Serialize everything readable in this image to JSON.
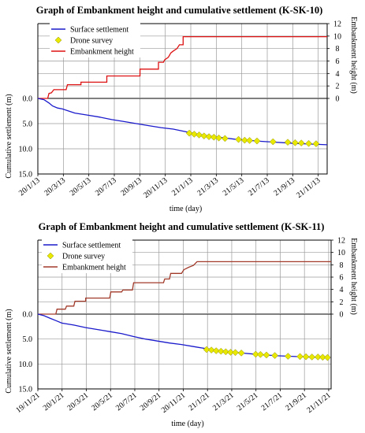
{
  "chart_data": [
    {
      "type": "line",
      "title": "Graph of Embankment height and cumulative settlement (K-SK-10)",
      "xlabel": "time (day)",
      "ylabel_left": "Cumulative settlement (m)",
      "ylabel_right": "Embankment height (m)",
      "x_tick_labels": [
        "20/1/13",
        "20/3/13",
        "20/5/13",
        "20/7/13",
        "20/9/13",
        "20/11/13",
        "21/1/13",
        "21/3/13",
        "21/5/13",
        "21/7/13",
        "21/9/13",
        "21/11/13"
      ],
      "y_left_ticks": [
        "0.0",
        "5.0",
        "10.0",
        "15.0"
      ],
      "y_right_ticks": [
        "0",
        "2",
        "4",
        "6",
        "8",
        "10",
        "12"
      ],
      "ylim_left": [
        0,
        15
      ],
      "ylim_right": [
        0,
        12
      ],
      "grid": true,
      "legend_position": "top-left",
      "legend": [
        {
          "name": "Surface settlement",
          "color": "#1a1acc",
          "marker": "line"
        },
        {
          "name": "Drone survey",
          "color": "#e8e800",
          "marker": "diamond"
        },
        {
          "name": "Embankment height",
          "color": "#dd1111",
          "marker": "line"
        }
      ],
      "x_range_months": [
        0,
        23.5
      ],
      "series": [
        {
          "name": "Embankment height",
          "axis": "right",
          "color": "#dd1111",
          "step": true,
          "points": [
            [
              0,
              0
            ],
            [
              0.8,
              0
            ],
            [
              0.9,
              0.8
            ],
            [
              1.1,
              0.9
            ],
            [
              1.3,
              1.4
            ],
            [
              2.3,
              1.4
            ],
            [
              2.4,
              2.2
            ],
            [
              3.5,
              2.2
            ],
            [
              3.5,
              2.6
            ],
            [
              5.6,
              2.6
            ],
            [
              5.6,
              3.6
            ],
            [
              8.3,
              3.6
            ],
            [
              8.3,
              4.7
            ],
            [
              9.8,
              4.7
            ],
            [
              9.8,
              5.8
            ],
            [
              10.2,
              5.8
            ],
            [
              10.3,
              6.2
            ],
            [
              10.6,
              6.6
            ],
            [
              10.8,
              7.3
            ],
            [
              11.0,
              7.6
            ],
            [
              11.3,
              8.0
            ],
            [
              11.5,
              8.6
            ],
            [
              11.8,
              8.6
            ],
            [
              11.8,
              9.9
            ],
            [
              12.2,
              9.9
            ],
            [
              23.5,
              9.9
            ]
          ]
        },
        {
          "name": "Surface settlement",
          "axis": "left",
          "color": "#1a1acc",
          "points": [
            [
              0,
              0
            ],
            [
              0.5,
              0.25
            ],
            [
              0.9,
              0.9
            ],
            [
              1.2,
              1.5
            ],
            [
              1.6,
              1.9
            ],
            [
              2.0,
              2.1
            ],
            [
              2.5,
              2.5
            ],
            [
              3.0,
              2.9
            ],
            [
              4.0,
              3.3
            ],
            [
              5.0,
              3.7
            ],
            [
              6.0,
              4.2
            ],
            [
              7.0,
              4.6
            ],
            [
              8.0,
              5.0
            ],
            [
              9.0,
              5.4
            ],
            [
              10.0,
              5.8
            ],
            [
              11.0,
              6.1
            ],
            [
              12.0,
              6.6
            ],
            [
              13.0,
              7.1
            ],
            [
              14.0,
              7.5
            ],
            [
              15.0,
              7.8
            ],
            [
              16.0,
              8.1
            ],
            [
              17.0,
              8.3
            ],
            [
              18.0,
              8.5
            ],
            [
              19.0,
              8.65
            ],
            [
              20.0,
              8.8
            ],
            [
              21.0,
              8.95
            ],
            [
              22.0,
              9.05
            ],
            [
              23.5,
              9.2
            ]
          ]
        },
        {
          "name": "Drone survey",
          "axis": "left",
          "color": "#e8e800",
          "marker": "diamond",
          "points": [
            [
              12.3,
              6.9
            ],
            [
              12.7,
              7.1
            ],
            [
              13.1,
              7.25
            ],
            [
              13.5,
              7.45
            ],
            [
              13.9,
              7.6
            ],
            [
              14.3,
              7.7
            ],
            [
              14.7,
              7.85
            ],
            [
              15.2,
              7.95
            ],
            [
              16.3,
              8.15
            ],
            [
              16.8,
              8.3
            ],
            [
              17.2,
              8.35
            ],
            [
              17.8,
              8.45
            ],
            [
              19.1,
              8.6
            ],
            [
              20.3,
              8.7
            ],
            [
              20.9,
              8.8
            ],
            [
              21.4,
              8.85
            ],
            [
              22.0,
              8.95
            ],
            [
              22.6,
              9.0
            ]
          ]
        }
      ]
    },
    {
      "type": "line",
      "title": "Graph of Embankment height and cumulative settlement (K-SK-11)",
      "xlabel": "time (day)",
      "ylabel_left": "Cumulative settlement (m)",
      "ylabel_right": "Embankment height (m)",
      "x_tick_labels": [
        "19/11/21",
        "20/1/21",
        "20/3/21",
        "20/5/21",
        "20/7/21",
        "20/9/21",
        "20/11/21",
        "21/1/21",
        "21/3/21",
        "21/5/21",
        "21/7/21",
        "21/9/21",
        "21/11/21"
      ],
      "y_left_ticks": [
        "0.0",
        "5.0",
        "10.0",
        "15.0"
      ],
      "y_right_ticks": [
        "0",
        "2",
        "4",
        "6",
        "8",
        "10",
        "12"
      ],
      "ylim_left": [
        0,
        15
      ],
      "ylim_right": [
        0,
        12
      ],
      "grid": true,
      "legend_position": "top-left",
      "legend": [
        {
          "name": "Surface settlement",
          "color": "#1a1acc",
          "marker": "line"
        },
        {
          "name": "Drone survey",
          "color": "#e8e800",
          "marker": "diamond"
        },
        {
          "name": "Embankment height",
          "color": "#a23a2a",
          "marker": "line"
        }
      ],
      "x_range_months": [
        0,
        24.5
      ],
      "series": [
        {
          "name": "Embankment height",
          "axis": "right",
          "color": "#a23a2a",
          "step": true,
          "points": [
            [
              0,
              0
            ],
            [
              1.5,
              0
            ],
            [
              1.6,
              0.8
            ],
            [
              2.3,
              0.8
            ],
            [
              2.4,
              1.3
            ],
            [
              3.0,
              1.3
            ],
            [
              3.1,
              2.1
            ],
            [
              4.0,
              2.1
            ],
            [
              4.0,
              2.6
            ],
            [
              6.0,
              2.6
            ],
            [
              6.1,
              3.6
            ],
            [
              7.0,
              3.6
            ],
            [
              7.1,
              3.9
            ],
            [
              7.9,
              3.9
            ],
            [
              8.0,
              5.1
            ],
            [
              10.5,
              5.1
            ],
            [
              10.6,
              5.7
            ],
            [
              11.0,
              5.7
            ],
            [
              11.1,
              6.6
            ],
            [
              12.0,
              6.6
            ],
            [
              12.2,
              7.2
            ],
            [
              12.6,
              7.6
            ],
            [
              13.0,
              7.9
            ],
            [
              13.3,
              8.5
            ],
            [
              24.5,
              8.5
            ]
          ]
        },
        {
          "name": "Surface settlement",
          "axis": "left",
          "color": "#1a1acc",
          "points": [
            [
              0,
              0
            ],
            [
              0.5,
              0.3
            ],
            [
              1.0,
              0.8
            ],
            [
              1.5,
              1.3
            ],
            [
              2.0,
              1.8
            ],
            [
              3.0,
              2.2
            ],
            [
              4.0,
              2.7
            ],
            [
              5.0,
              3.1
            ],
            [
              6.0,
              3.5
            ],
            [
              7.0,
              3.9
            ],
            [
              8.0,
              4.5
            ],
            [
              9.0,
              5.0
            ],
            [
              10.0,
              5.4
            ],
            [
              11.0,
              5.8
            ],
            [
              12.0,
              6.1
            ],
            [
              13.0,
              6.5
            ],
            [
              14.0,
              6.9
            ],
            [
              15.0,
              7.25
            ],
            [
              16.0,
              7.55
            ],
            [
              17.0,
              7.8
            ],
            [
              18.0,
              8.0
            ],
            [
              19.0,
              8.2
            ],
            [
              20.0,
              8.35
            ],
            [
              21.0,
              8.45
            ],
            [
              22.0,
              8.55
            ],
            [
              23.0,
              8.65
            ],
            [
              24.5,
              8.7
            ]
          ]
        },
        {
          "name": "Drone survey",
          "axis": "left",
          "color": "#e8e800",
          "marker": "diamond",
          "points": [
            [
              14.1,
              7.1
            ],
            [
              14.5,
              7.2
            ],
            [
              14.9,
              7.35
            ],
            [
              15.3,
              7.45
            ],
            [
              15.7,
              7.55
            ],
            [
              16.1,
              7.65
            ],
            [
              16.5,
              7.7
            ],
            [
              17.0,
              7.8
            ],
            [
              18.2,
              8.05
            ],
            [
              18.6,
              8.1
            ],
            [
              19.1,
              8.2
            ],
            [
              19.8,
              8.3
            ],
            [
              20.9,
              8.45
            ],
            [
              21.9,
              8.5
            ],
            [
              22.4,
              8.55
            ],
            [
              22.9,
              8.6
            ],
            [
              23.4,
              8.6
            ],
            [
              23.8,
              8.65
            ],
            [
              24.2,
              8.7
            ]
          ]
        }
      ]
    }
  ]
}
